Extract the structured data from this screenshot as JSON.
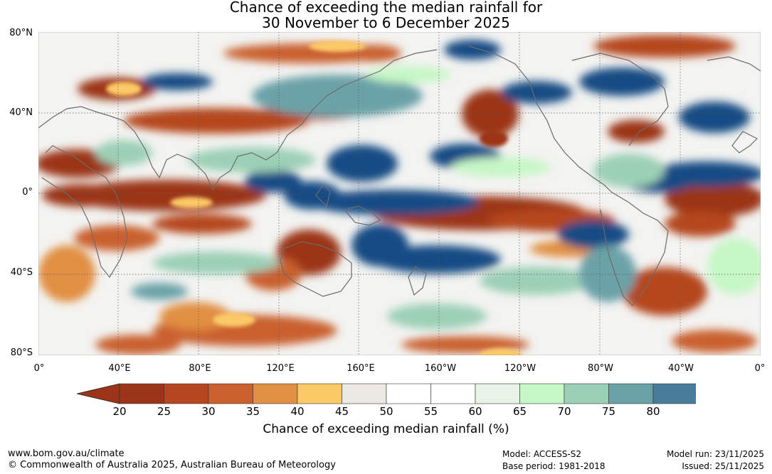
{
  "title": {
    "line1": "Chance of exceeding the median rainfall for",
    "line2": "30 November to 6 December 2025"
  },
  "lat_labels": [
    "80°N",
    "40°N",
    "0°",
    "40°S",
    "80°S"
  ],
  "lon_labels": [
    "0°",
    "40°E",
    "80°E",
    "120°E",
    "160°E",
    "160°W",
    "120°W",
    "80°W",
    "40°W",
    "0°"
  ],
  "colorbar": {
    "ticks": [
      "20",
      "25",
      "30",
      "35",
      "40",
      "45",
      "50",
      "55",
      "60",
      "65",
      "70",
      "75",
      "80"
    ],
    "colors": [
      "#9b3419",
      "#b5461f",
      "#c9602e",
      "#e18f43",
      "#fbc966",
      "#ece8e3",
      "#ffffff",
      "#ffffff",
      "#e8f5e6",
      "#c6f7c6",
      "#9cd0b6",
      "#6aa2a8",
      "#487c9a"
    ],
    "low_arrow_color": "#9b3419",
    "high_arrow_color": "#144c84",
    "label": "Chance of exceeding median rainfall (%)"
  },
  "footer": {
    "url": "www.bom.gov.au/climate",
    "copyright": "© Commonwealth of Australia 2025, Australian Bureau of Meteorology",
    "model": "Model: ACCESS-S2",
    "base_period": "Base period: 1981-2018",
    "model_run": "Model run: 23/11/2025",
    "issued": "Issued: 25/11/2025"
  }
}
